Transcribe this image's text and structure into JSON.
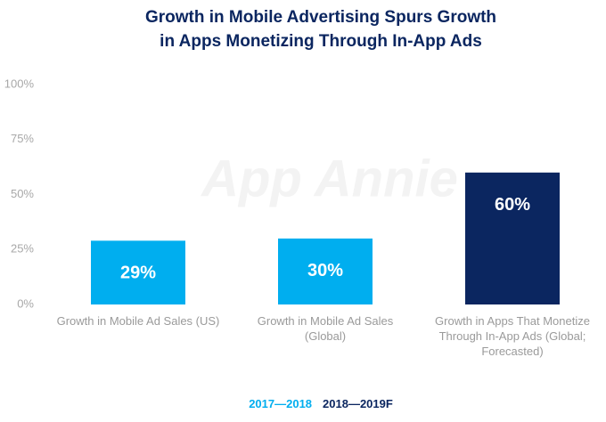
{
  "chart_data": {
    "type": "bar",
    "title": "Growth in Mobile Advertising Spurs Growth in Apps Monetizing Through In-App Ads",
    "watermark": "App Annie",
    "categories": [
      "Growth in Mobile Ad Sales (US)",
      "Growth in Mobile Ad Sales (Global)",
      "Growth in Apps That Monetize Through In-App Ads (Global; Forecasted)"
    ],
    "series": [
      {
        "name": "2017—2018",
        "color": "#00aeef",
        "values": [
          29,
          30,
          null
        ],
        "value_labels": [
          "29%",
          "30%",
          null
        ]
      },
      {
        "name": "2018—2019F",
        "color": "#0b2660",
        "values": [
          null,
          null,
          60
        ],
        "value_labels": [
          null,
          null,
          "60%"
        ]
      }
    ],
    "ylim": [
      0,
      100
    ],
    "yticks": [
      {
        "value": 0,
        "label": "0%"
      },
      {
        "value": 25,
        "label": "25%"
      },
      {
        "value": 50,
        "label": "50%"
      },
      {
        "value": 75,
        "label": "75%"
      },
      {
        "value": 100,
        "label": "100%"
      }
    ],
    "grid": false,
    "legend": "bottom"
  }
}
